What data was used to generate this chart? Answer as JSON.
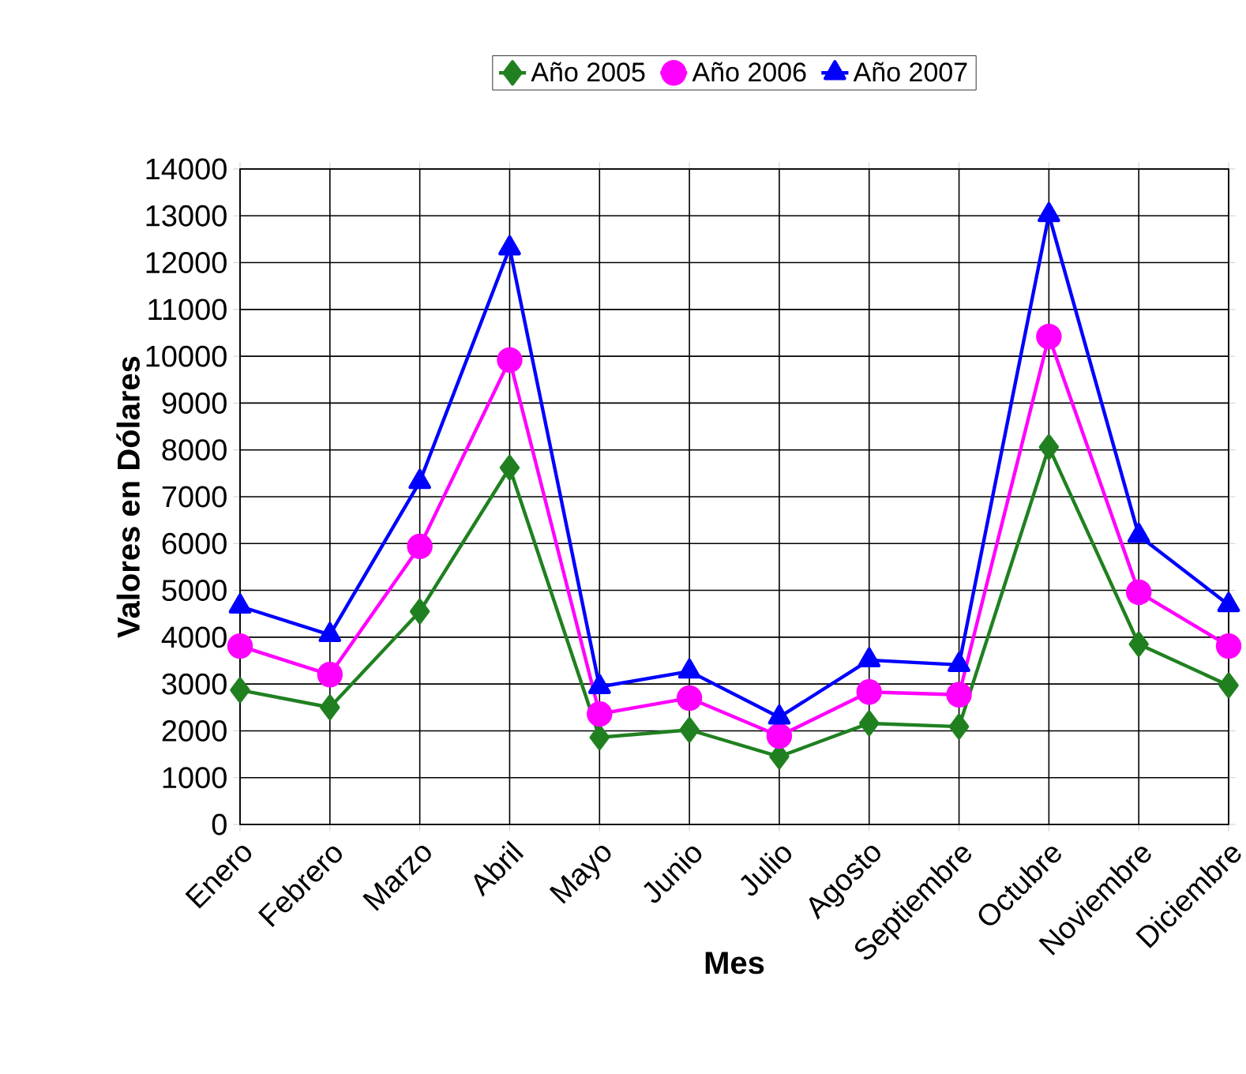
{
  "chart_data": {
    "type": "line",
    "xlabel": "Mes",
    "ylabel": "Valores en Dólares",
    "categories": [
      "Enero",
      "Febrero",
      "Marzo",
      "Abril",
      "Mayo",
      "Junio",
      "Julio",
      "Agosto",
      "Septiembre",
      "Octubre",
      "Noviembre",
      "Diciembre"
    ],
    "series": [
      {
        "name": "Año 2005",
        "color": "#208020",
        "marker": "diamond",
        "values": [
          2870,
          2500,
          4550,
          7620,
          1860,
          2020,
          1450,
          2160,
          2090,
          8060,
          3850,
          2970
        ]
      },
      {
        "name": "Año 2006",
        "color": "#ff00ff",
        "marker": "circle",
        "values": [
          3810,
          3200,
          5940,
          9920,
          2360,
          2700,
          1890,
          2830,
          2770,
          10420,
          4960,
          3810
        ]
      },
      {
        "name": "Año 2007",
        "color": "#0000ff",
        "marker": "triangle",
        "values": [
          4660,
          4050,
          7320,
          12310,
          2940,
          3270,
          2290,
          3510,
          3410,
          13020,
          6170,
          4690
        ]
      }
    ],
    "ylim": [
      0,
      14000
    ],
    "yticks": [
      0,
      1000,
      2000,
      3000,
      4000,
      5000,
      6000,
      7000,
      8000,
      9000,
      10000,
      11000,
      12000,
      13000,
      14000
    ],
    "grid": true,
    "legend": "top",
    "line_style": "solid"
  }
}
